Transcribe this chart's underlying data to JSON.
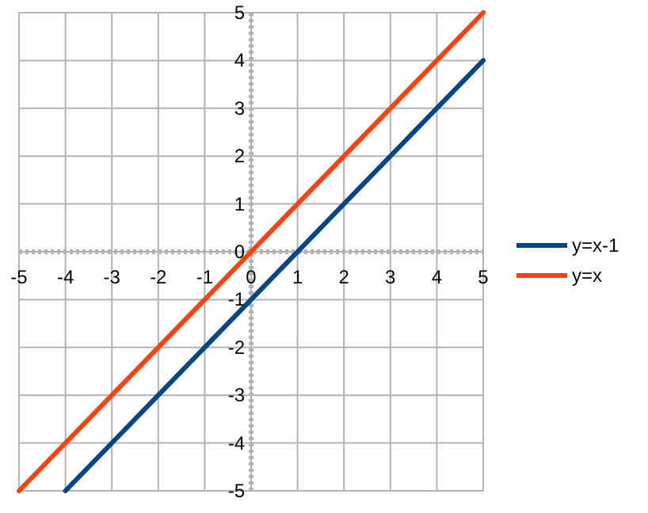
{
  "chart_data": {
    "type": "line",
    "series": [
      {
        "name": "y=x-1",
        "color": "#004586",
        "x": [
          -4,
          5
        ],
        "values": [
          -5,
          4
        ]
      },
      {
        "name": "y=x",
        "color": "#ff420e",
        "x": [
          -5,
          5
        ],
        "values": [
          -5,
          5
        ]
      }
    ],
    "xlim": [
      -5,
      5
    ],
    "ylim": [
      -5,
      5
    ],
    "xticks": [
      -5,
      -4,
      -3,
      -2,
      -1,
      0,
      1,
      2,
      3,
      4,
      5
    ],
    "yticks": [
      -5,
      -4,
      -3,
      -2,
      -1,
      0,
      1,
      2,
      3,
      4,
      5
    ],
    "grid": true,
    "legend": "right",
    "marker": "none",
    "line_style": "solid"
  }
}
